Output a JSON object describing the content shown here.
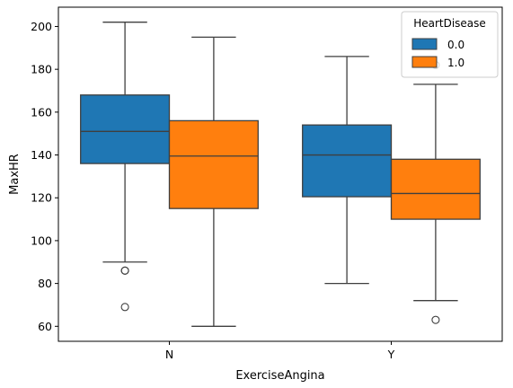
{
  "chart_data": {
    "type": "boxplot",
    "xlabel": "ExerciseAngina",
    "ylabel": "MaxHR",
    "categories": [
      "N",
      "Y"
    ],
    "ylim": [
      53,
      209
    ],
    "yticks": [
      60,
      80,
      100,
      120,
      140,
      160,
      180,
      200
    ],
    "grid": false,
    "legend": {
      "title": "HeartDisease",
      "placement": "top-right"
    },
    "series": [
      {
        "name": "0.0",
        "color": "#1f77b4",
        "boxes": [
          {
            "category": "N",
            "whisker_low": 90,
            "q1": 136,
            "median": 151,
            "q3": 168,
            "whisker_high": 202,
            "outliers": [
              86,
              86,
              69
            ]
          },
          {
            "category": "Y",
            "whisker_low": 80,
            "q1": 120.5,
            "median": 140,
            "q3": 154,
            "whisker_high": 186,
            "outliers": []
          }
        ]
      },
      {
        "name": "1.0",
        "color": "#ff7f0e",
        "boxes": [
          {
            "category": "N",
            "whisker_low": 60,
            "q1": 115,
            "median": 139.5,
            "q3": 156,
            "whisker_high": 195,
            "outliers": []
          },
          {
            "category": "Y",
            "whisker_low": 72,
            "q1": 110,
            "median": 122,
            "q3": 138,
            "whisker_high": 173,
            "outliers": [
              63,
              182
            ]
          }
        ]
      }
    ]
  }
}
